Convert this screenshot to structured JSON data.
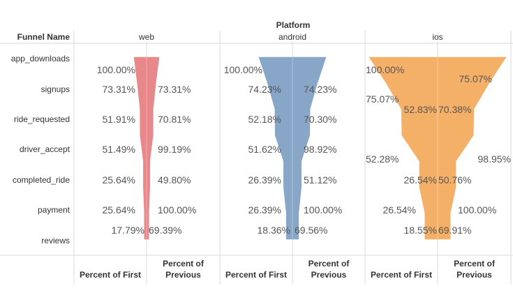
{
  "chart_data": {
    "type": "funnel",
    "title": "Platform",
    "row_header": "Funnel Name",
    "stages": [
      "app_downloads",
      "signups",
      "ride_requested",
      "driver_accept",
      "completed_ride",
      "payment",
      "reviews"
    ],
    "measure_labels": {
      "left_line1": "Percent of First",
      "right_line1": "Percent of",
      "right_line2": "Previous"
    },
    "colors": {
      "web": "#e8888a",
      "android": "#88a6c8",
      "ios": "#f5b068"
    },
    "series": [
      {
        "name": "web",
        "percent_of_first": [
          100.0,
          73.31,
          51.91,
          51.49,
          25.64,
          25.64,
          17.79
        ],
        "percent_of_previous": [
          null,
          73.31,
          70.81,
          99.19,
          49.8,
          100.0,
          69.39
        ],
        "first_labels": [
          "100.00%",
          "73.31%",
          "51.91%",
          "51.49%",
          "25.64%",
          "25.64%",
          "17.79%"
        ],
        "previous_labels": [
          "",
          "73.31%",
          "70.81%",
          "99.19%",
          "49.80%",
          "100.00%",
          "69.39%"
        ]
      },
      {
        "name": "android",
        "percent_of_first": [
          100.0,
          74.23,
          52.18,
          51.62,
          26.39,
          26.39,
          18.36
        ],
        "percent_of_previous": [
          null,
          74.23,
          70.3,
          98.92,
          51.12,
          100.0,
          69.56
        ],
        "first_labels": [
          "100.00%",
          "74.23%",
          "52.18%",
          "51.62%",
          "26.39%",
          "26.39%",
          "18.36%"
        ],
        "previous_labels": [
          "",
          "74.23%",
          "70.30%",
          "98.92%",
          "51.12%",
          "100.00%",
          "69.56%"
        ]
      },
      {
        "name": "ios",
        "percent_of_first": [
          100.0,
          75.07,
          52.83,
          52.28,
          26.54,
          26.54,
          18.55
        ],
        "percent_of_previous": [
          null,
          75.07,
          70.38,
          98.95,
          50.76,
          100.0,
          69.91
        ],
        "first_labels": [
          "100.00%",
          "75.07%",
          "52.83%",
          "52.28%",
          "26.54%",
          "26.54%",
          "18.55%"
        ],
        "previous_labels": [
          "",
          "75.07%",
          "70.38%",
          "98.95%",
          "50.76%",
          "100.00%",
          "69.91%"
        ]
      }
    ]
  }
}
